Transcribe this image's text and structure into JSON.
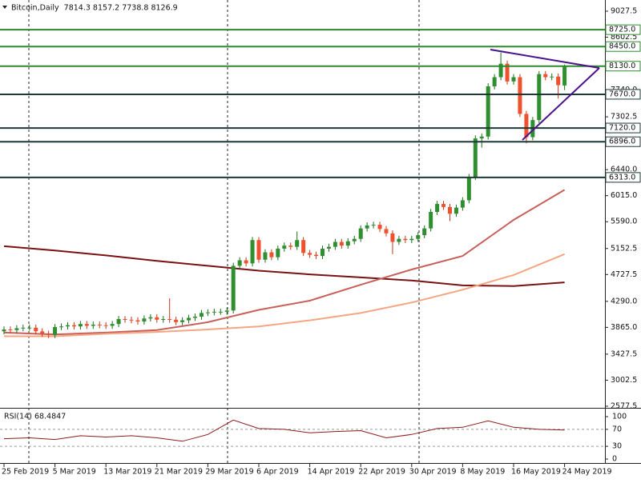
{
  "chart_data": [
    {
      "type": "candlestick",
      "title": "Bitcoin,Daily  7814.3 8157.2 7738.8 8126.9",
      "categories": [
        "25 Feb 2019",
        null,
        null,
        null,
        null,
        null,
        null,
        null,
        "5 Mar 2019",
        null,
        null,
        null,
        null,
        null,
        null,
        null,
        "13 Mar 2019",
        null,
        null,
        null,
        null,
        null,
        null,
        null,
        "21 Mar 2019",
        null,
        null,
        null,
        null,
        null,
        null,
        null,
        "29 Mar 2019",
        null,
        null,
        null,
        null,
        null,
        null,
        null,
        "6 Apr 2019",
        null,
        null,
        null,
        null,
        null,
        null,
        null,
        "14 Apr 2019",
        null,
        null,
        null,
        null,
        null,
        null,
        null,
        "22 Apr 2019",
        null,
        null,
        null,
        null,
        null,
        null,
        null,
        "30 Apr 2019",
        null,
        null,
        null,
        null,
        null,
        null,
        null,
        "8 May 2019",
        null,
        null,
        null,
        null,
        null,
        null,
        null,
        "16 May 2019",
        null,
        null,
        null,
        null,
        null,
        null,
        null,
        "24 May 2019"
      ],
      "open": [
        3800,
        3830,
        3820,
        3850,
        3860,
        3860,
        3800,
        3760,
        3740,
        3870,
        3880,
        3900,
        3880,
        3920,
        3890,
        3910,
        3900,
        3890,
        3920,
        4000,
        3990,
        3980,
        3960,
        4010,
        4030,
        3990,
        4000,
        3990,
        3950,
        3980,
        4020,
        4040,
        4100,
        4110,
        4120,
        4120,
        4140,
        4870,
        4960,
        4910,
        5290,
        4970,
        5090,
        5010,
        5150,
        5200,
        5180,
        5290,
        5080,
        5050,
        5030,
        5150,
        5180,
        5260,
        5200,
        5270,
        5310,
        5480,
        5530,
        5540,
        5470,
        5400,
        5260,
        5310,
        5290,
        5310,
        5370,
        5480,
        5750,
        5880,
        5830,
        5720,
        5820,
        5940,
        6320,
        6950,
        6980,
        7800,
        7950,
        8170,
        7880,
        7950,
        7350,
        6970,
        7250,
        8000,
        7950,
        7960,
        7814.3
      ],
      "high": [
        3880,
        3880,
        3900,
        3910,
        3910,
        3910,
        3850,
        3810,
        3920,
        3930,
        3950,
        3950,
        3970,
        3970,
        3960,
        3960,
        3950,
        3970,
        4050,
        4050,
        4040,
        4030,
        4060,
        4080,
        4080,
        4050,
        4340,
        4040,
        4030,
        4070,
        4090,
        4150,
        4160,
        4170,
        4170,
        4190,
        4920,
        5010,
        5010,
        5340,
        5340,
        5140,
        5140,
        5200,
        5250,
        5250,
        5430,
        5340,
        5130,
        5100,
        5200,
        5230,
        5310,
        5310,
        5320,
        5360,
        5530,
        5580,
        5590,
        5590,
        5520,
        5450,
        5360,
        5360,
        5360,
        5420,
        5530,
        5800,
        5930,
        5930,
        5880,
        5870,
        5990,
        6370,
        7000,
        7030,
        7850,
        8000,
        8350,
        8220,
        8000,
        8000,
        7400,
        7300,
        8050,
        8050,
        8010,
        8010,
        8157.2
      ],
      "low": [
        3750,
        3770,
        3770,
        3800,
        3810,
        3750,
        3710,
        3690,
        3690,
        3820,
        3830,
        3830,
        3830,
        3840,
        3840,
        3850,
        3840,
        3840,
        3870,
        3940,
        3930,
        3910,
        3910,
        3960,
        3940,
        3940,
        3940,
        3900,
        3900,
        3930,
        3970,
        3990,
        4050,
        4060,
        4070,
        4070,
        4090,
        4820,
        4860,
        4860,
        4920,
        4920,
        4960,
        4960,
        5100,
        5130,
        5130,
        5030,
        5000,
        4980,
        4980,
        5100,
        5130,
        5150,
        5150,
        5220,
        5260,
        5430,
        5480,
        5420,
        5350,
        5060,
        5210,
        5240,
        5240,
        5260,
        5320,
        5430,
        5700,
        5780,
        5600,
        5670,
        5770,
        5890,
        6270,
        6800,
        6930,
        7750,
        7900,
        7830,
        7830,
        7300,
        6870,
        6920,
        7200,
        7900,
        7900,
        7600,
        7738.8
      ],
      "close": [
        3830,
        3820,
        3850,
        3860,
        3860,
        3800,
        3760,
        3740,
        3870,
        3880,
        3900,
        3880,
        3920,
        3890,
        3910,
        3900,
        3890,
        3920,
        4000,
        3990,
        3980,
        3960,
        4010,
        4030,
        3990,
        4000,
        3990,
        3950,
        3980,
        4020,
        4040,
        4100,
        4110,
        4120,
        4120,
        4140,
        4870,
        4960,
        4910,
        5290,
        4970,
        5090,
        5010,
        5150,
        5200,
        5180,
        5290,
        5080,
        5050,
        5030,
        5150,
        5180,
        5260,
        5200,
        5270,
        5310,
        5480,
        5530,
        5540,
        5470,
        5400,
        5260,
        5310,
        5290,
        5310,
        5370,
        5480,
        5750,
        5880,
        5830,
        5720,
        5820,
        5940,
        6320,
        6950,
        6980,
        7800,
        7950,
        8170,
        7880,
        7950,
        7350,
        6970,
        7250,
        8000,
        7950,
        7960,
        7820,
        8126.9
      ],
      "up_color": "#2f8f2f",
      "down_color": "#f0502d",
      "ylim": [
        2551,
        9210
      ],
      "yticks": [
        9027.5,
        8602.5,
        {
          "value": 7740,
          "label": "7740.0"
        },
        7302.5,
        {
          "value": 6440,
          "label": "6440.0"
        },
        {
          "value": 6015,
          "label": "6015.0"
        },
        {
          "value": 5590,
          "label": "5590.0"
        },
        5152.5,
        4727.5,
        {
          "value": 4290,
          "label": "4290.0"
        },
        {
          "value": 3865,
          "label": "3865.0"
        },
        3427.5,
        3002.5,
        2577.5
      ],
      "levels": [
        {
          "value": 8725,
          "label": "8725.0",
          "color": "#2d8a2d"
        },
        {
          "value": 8450,
          "label": "8450.0",
          "color": "#2d8a2d"
        },
        {
          "value": 8130,
          "label": "8130.0",
          "color": "#2d8a2d"
        },
        {
          "value": 7670,
          "label": "7670.0",
          "color": "#1e3838"
        },
        {
          "value": 7120,
          "label": "7120.0",
          "color": "#1e3838"
        },
        {
          "value": 6896,
          "label": "6896.0",
          "color": "#1e3838"
        },
        {
          "value": 6313,
          "label": "6313.0",
          "color": "#1e3838"
        }
      ],
      "moving_averages": [
        {
          "color": "#7a1212",
          "x": [
            0,
            8,
            16,
            24,
            32,
            40,
            48,
            56,
            64,
            72,
            80,
            88
          ],
          "values": [
            5190,
            5120,
            5040,
            4950,
            4870,
            4790,
            4730,
            4680,
            4630,
            4550,
            4540,
            4600
          ]
        },
        {
          "color": "#c8605a",
          "x": [
            0,
            8,
            16,
            24,
            32,
            40,
            48,
            56,
            64,
            72,
            80,
            88
          ],
          "values": [
            3780,
            3750,
            3780,
            3820,
            3950,
            4150,
            4300,
            4560,
            4810,
            5030,
            5620,
            6110
          ]
        },
        {
          "color": "#f4a582",
          "x": [
            0,
            8,
            16,
            24,
            32,
            40,
            48,
            56,
            64,
            72,
            80,
            88
          ],
          "values": [
            3720,
            3720,
            3760,
            3790,
            3830,
            3880,
            3980,
            4100,
            4270,
            4480,
            4720,
            5060
          ]
        }
      ]
    },
    {
      "type": "line",
      "title": "RSI(14) 68.4847",
      "x": [
        0,
        4,
        8,
        12,
        16,
        20,
        24,
        28,
        32,
        36,
        40,
        44,
        48,
        52,
        56,
        60,
        64,
        68,
        72,
        76,
        80,
        84,
        88
      ],
      "values": [
        48,
        50,
        46,
        55,
        52,
        55,
        50,
        42,
        58,
        92,
        72,
        70,
        62,
        65,
        67,
        50,
        58,
        72,
        75,
        90,
        75,
        70,
        68.4847
      ],
      "color": "#8b1a1a",
      "ylim": [
        -7.5,
        117
      ],
      "yticks": [
        100,
        70,
        30,
        0
      ],
      "levels": [
        70,
        30
      ]
    }
  ]
}
